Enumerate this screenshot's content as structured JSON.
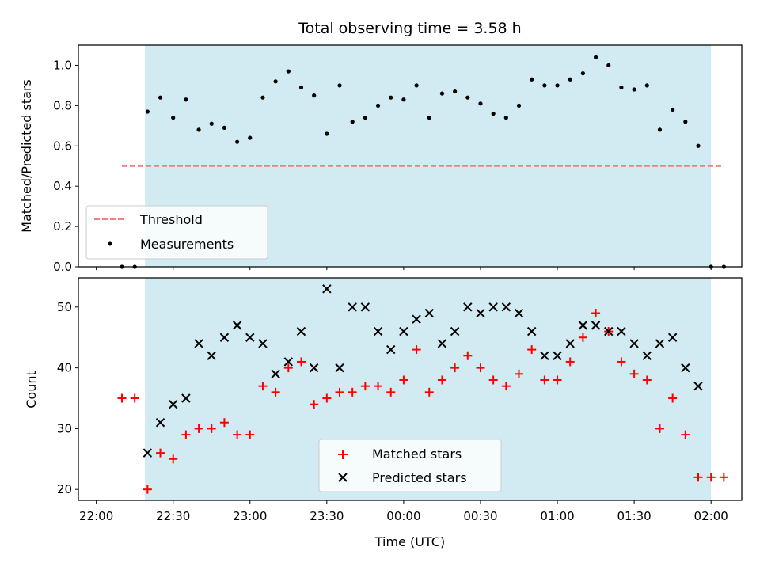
{
  "colors": {
    "span": "#add8e6",
    "threshold": "#f08080",
    "measurements": "#000000",
    "matched": "#ff0000",
    "predicted": "#000000"
  },
  "chart_data": [
    {
      "type": "scatter",
      "title": "Total observing time = 3.58 h",
      "xlabel": "",
      "ylabel": "Matched/Predicted stars",
      "xlim": [
        "21:53",
        "02:12"
      ],
      "ylim": [
        0,
        1.1
      ],
      "yticks": [
        0.0,
        0.2,
        0.4,
        0.6,
        0.8,
        1.0
      ],
      "ytick_labels": [
        "0.0",
        "0.2",
        "0.4",
        "0.6",
        "0.8",
        "1.0"
      ],
      "observing_span": [
        "22:19",
        "02:00"
      ],
      "threshold": {
        "name": "Threshold",
        "y": 0.5,
        "x_range": [
          "22:10",
          "02:05"
        ]
      },
      "series": [
        {
          "name": "Measurements",
          "x": [
            "22:10",
            "22:15",
            "22:20",
            "22:25",
            "22:30",
            "22:35",
            "22:40",
            "22:45",
            "22:50",
            "22:55",
            "23:00",
            "23:05",
            "23:10",
            "23:15",
            "23:20",
            "23:25",
            "23:30",
            "23:35",
            "23:40",
            "23:45",
            "23:50",
            "23:55",
            "00:00",
            "00:05",
            "00:10",
            "00:15",
            "00:20",
            "00:25",
            "00:30",
            "00:35",
            "00:40",
            "00:45",
            "00:50",
            "00:55",
            "01:00",
            "01:05",
            "01:10",
            "01:15",
            "01:20",
            "01:25",
            "01:30",
            "01:35",
            "01:40",
            "01:45",
            "01:50",
            "01:55",
            "02:00",
            "02:05"
          ],
          "y": [
            0.0,
            0.0,
            0.77,
            0.84,
            0.74,
            0.83,
            0.68,
            0.71,
            0.69,
            0.62,
            0.64,
            0.84,
            0.92,
            0.97,
            0.89,
            0.85,
            0.66,
            0.9,
            0.72,
            0.74,
            0.8,
            0.84,
            0.83,
            0.9,
            0.74,
            0.86,
            0.87,
            0.84,
            0.81,
            0.76,
            0.74,
            0.8,
            0.93,
            0.9,
            0.9,
            0.93,
            0.96,
            1.04,
            1.0,
            0.89,
            0.88,
            0.9,
            0.68,
            0.78,
            0.72,
            0.6,
            0.0,
            0.0
          ]
        }
      ],
      "legend": {
        "position": "lower-left",
        "entries": [
          "Threshold",
          "Measurements"
        ]
      }
    },
    {
      "type": "scatter",
      "title": "",
      "xlabel": "Time (UTC)",
      "ylabel": "Count",
      "xlim": [
        "21:53",
        "02:12"
      ],
      "ylim": [
        18.2,
        54.8
      ],
      "yticks": [
        20,
        30,
        40,
        50
      ],
      "ytick_labels": [
        "20",
        "30",
        "40",
        "50"
      ],
      "xticks": [
        "22:00",
        "22:30",
        "23:00",
        "23:30",
        "00:00",
        "00:30",
        "01:00",
        "01:30",
        "02:00"
      ],
      "observing_span": [
        "22:19",
        "02:00"
      ],
      "series": [
        {
          "name": "Matched stars",
          "marker": "+",
          "x": [
            "22:10",
            "22:15",
            "22:20",
            "22:25",
            "22:30",
            "22:35",
            "22:40",
            "22:45",
            "22:50",
            "22:55",
            "23:00",
            "23:05",
            "23:10",
            "23:15",
            "23:20",
            "23:25",
            "23:30",
            "23:35",
            "23:40",
            "23:45",
            "23:50",
            "23:55",
            "00:00",
            "00:05",
            "00:10",
            "00:15",
            "00:20",
            "00:25",
            "00:30",
            "00:35",
            "00:40",
            "00:45",
            "00:50",
            "00:55",
            "01:00",
            "01:05",
            "01:10",
            "01:15",
            "01:20",
            "01:25",
            "01:30",
            "01:35",
            "01:40",
            "01:45",
            "01:50",
            "01:55",
            "02:00",
            "02:05"
          ],
          "y": [
            35,
            35,
            20,
            26,
            25,
            29,
            30,
            30,
            31,
            29,
            29,
            37,
            36,
            40,
            41,
            34,
            35,
            36,
            36,
            37,
            37,
            36,
            38,
            43,
            36,
            38,
            40,
            42,
            40,
            38,
            37,
            39,
            43,
            38,
            38,
            41,
            45,
            49,
            46,
            41,
            39,
            38,
            30,
            35,
            29,
            22,
            22,
            22
          ]
        },
        {
          "name": "Predicted stars",
          "marker": "x",
          "x": [
            "22:20",
            "22:25",
            "22:30",
            "22:35",
            "22:40",
            "22:45",
            "22:50",
            "22:55",
            "23:00",
            "23:05",
            "23:10",
            "23:15",
            "23:20",
            "23:25",
            "23:30",
            "23:35",
            "23:40",
            "23:45",
            "23:50",
            "23:55",
            "00:00",
            "00:05",
            "00:10",
            "00:15",
            "00:20",
            "00:25",
            "00:30",
            "00:35",
            "00:40",
            "00:45",
            "00:50",
            "00:55",
            "01:00",
            "01:05",
            "01:10",
            "01:15",
            "01:20",
            "01:25",
            "01:30",
            "01:35",
            "01:40",
            "01:45",
            "01:50",
            "01:55"
          ],
          "y": [
            26,
            31,
            34,
            35,
            44,
            42,
            45,
            47,
            45,
            44,
            39,
            41,
            46,
            40,
            53,
            40,
            50,
            50,
            46,
            43,
            46,
            48,
            49,
            44,
            46,
            50,
            49,
            50,
            50,
            49,
            46,
            42,
            42,
            44,
            47,
            47,
            46,
            46,
            44,
            42,
            44,
            45,
            40,
            37
          ]
        }
      ],
      "legend": {
        "position": "lower-center",
        "entries": [
          "Matched stars",
          "Predicted stars"
        ]
      }
    }
  ]
}
